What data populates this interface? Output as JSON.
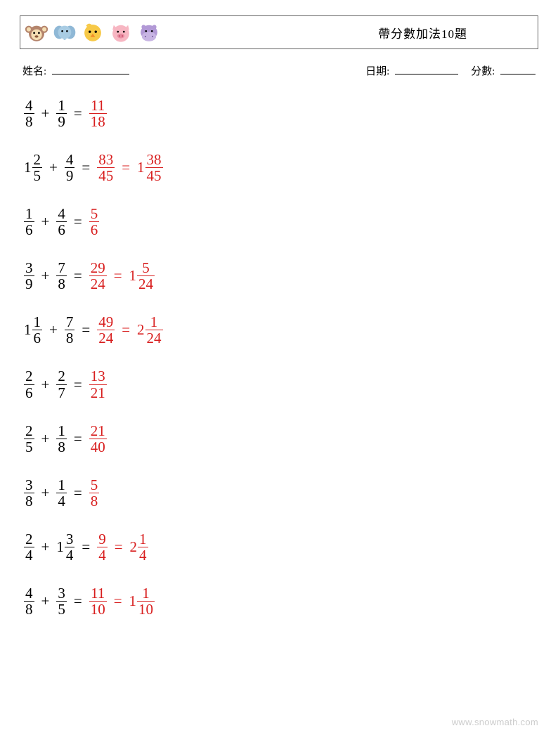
{
  "header": {
    "title": "帶分數加法10題",
    "icons": [
      "monkey",
      "elephant",
      "chick",
      "pig",
      "hippo"
    ]
  },
  "meta": {
    "name_label": "姓名:",
    "date_label": "日期:",
    "score_label": "分數:",
    "name_underline_width": 110,
    "date_underline_width": 90,
    "score_underline_width": 50
  },
  "colors": {
    "text": "#000000",
    "answer": "#d81e1e",
    "border": "#666666",
    "background": "#ffffff",
    "watermark": "#cccccc"
  },
  "typography": {
    "body_fontsize": 21,
    "header_fontsize": 17,
    "meta_fontsize": 15,
    "watermark_fontsize": 13
  },
  "watermark": "www.snowmath.com",
  "problems": [
    {
      "a": {
        "w": null,
        "n": 4,
        "d": 8
      },
      "b": {
        "w": null,
        "n": 1,
        "d": 9
      },
      "answers": [
        {
          "w": null,
          "n": 11,
          "d": 18
        }
      ]
    },
    {
      "a": {
        "w": 1,
        "n": 2,
        "d": 5
      },
      "b": {
        "w": null,
        "n": 4,
        "d": 9
      },
      "answers": [
        {
          "w": null,
          "n": 83,
          "d": 45
        },
        {
          "w": 1,
          "n": 38,
          "d": 45
        }
      ]
    },
    {
      "a": {
        "w": null,
        "n": 1,
        "d": 6
      },
      "b": {
        "w": null,
        "n": 4,
        "d": 6
      },
      "answers": [
        {
          "w": null,
          "n": 5,
          "d": 6
        }
      ]
    },
    {
      "a": {
        "w": null,
        "n": 3,
        "d": 9
      },
      "b": {
        "w": null,
        "n": 7,
        "d": 8
      },
      "answers": [
        {
          "w": null,
          "n": 29,
          "d": 24
        },
        {
          "w": 1,
          "n": 5,
          "d": 24
        }
      ]
    },
    {
      "a": {
        "w": 1,
        "n": 1,
        "d": 6
      },
      "b": {
        "w": null,
        "n": 7,
        "d": 8
      },
      "answers": [
        {
          "w": null,
          "n": 49,
          "d": 24
        },
        {
          "w": 2,
          "n": 1,
          "d": 24
        }
      ]
    },
    {
      "a": {
        "w": null,
        "n": 2,
        "d": 6
      },
      "b": {
        "w": null,
        "n": 2,
        "d": 7
      },
      "answers": [
        {
          "w": null,
          "n": 13,
          "d": 21
        }
      ]
    },
    {
      "a": {
        "w": null,
        "n": 2,
        "d": 5
      },
      "b": {
        "w": null,
        "n": 1,
        "d": 8
      },
      "answers": [
        {
          "w": null,
          "n": 21,
          "d": 40
        }
      ]
    },
    {
      "a": {
        "w": null,
        "n": 3,
        "d": 8
      },
      "b": {
        "w": null,
        "n": 1,
        "d": 4
      },
      "answers": [
        {
          "w": null,
          "n": 5,
          "d": 8
        }
      ]
    },
    {
      "a": {
        "w": null,
        "n": 2,
        "d": 4
      },
      "b": {
        "w": 1,
        "n": 3,
        "d": 4
      },
      "answers": [
        {
          "w": null,
          "n": 9,
          "d": 4
        },
        {
          "w": 2,
          "n": 1,
          "d": 4
        }
      ]
    },
    {
      "a": {
        "w": null,
        "n": 4,
        "d": 8
      },
      "b": {
        "w": null,
        "n": 3,
        "d": 5
      },
      "answers": [
        {
          "w": null,
          "n": 11,
          "d": 10
        },
        {
          "w": 1,
          "n": 1,
          "d": 10
        }
      ]
    }
  ]
}
